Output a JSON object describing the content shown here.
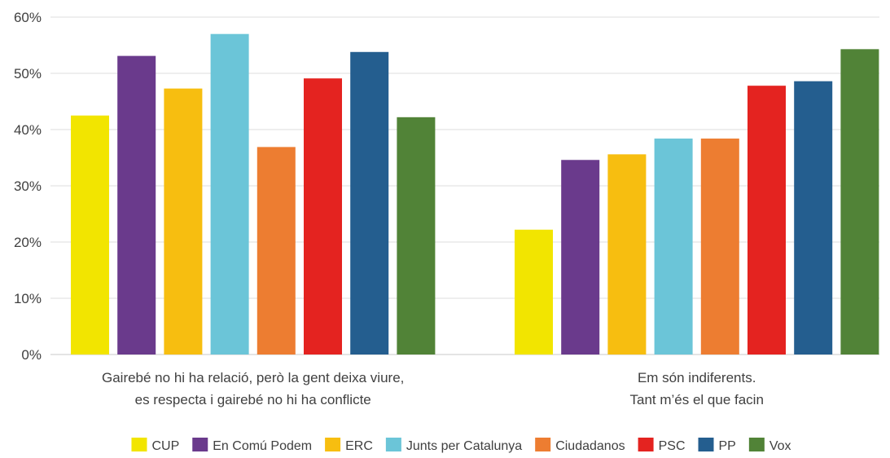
{
  "chart_data": {
    "type": "bar",
    "title": "",
    "xlabel": "",
    "ylabel": "",
    "ylim": [
      0,
      0.6
    ],
    "yticks": [
      "0%",
      "10%",
      "20%",
      "30%",
      "40%",
      "50%",
      "60%"
    ],
    "grid": true,
    "legend_position": "bottom",
    "categories": [
      [
        "Gairebé no hi ha relació, però la gent deixa viure,",
        "es respecta i gairebé no hi ha conflicte"
      ],
      [
        "Em són indiferents.",
        "Tant m’és el que facin"
      ]
    ],
    "series": [
      {
        "name": "CUP",
        "color": "#F2E500",
        "values": [
          0.425,
          0.222
        ]
      },
      {
        "name": "En Comú Podem",
        "color": "#6A3A8C",
        "values": [
          0.531,
          0.346
        ]
      },
      {
        "name": "ERC",
        "color": "#F7BE10",
        "values": [
          0.473,
          0.356
        ]
      },
      {
        "name": "Junts per Catalunya",
        "color": "#6BC5D8",
        "values": [
          0.57,
          0.384
        ]
      },
      {
        "name": "Ciudadanos",
        "color": "#ED7D31",
        "values": [
          0.369,
          0.384
        ]
      },
      {
        "name": "PSC",
        "color": "#E42320",
        "values": [
          0.491,
          0.478
        ]
      },
      {
        "name": "PP",
        "color": "#245E8F",
        "values": [
          0.538,
          0.486
        ]
      },
      {
        "name": "Vox",
        "color": "#518337",
        "values": [
          0.422,
          0.543
        ]
      }
    ]
  }
}
